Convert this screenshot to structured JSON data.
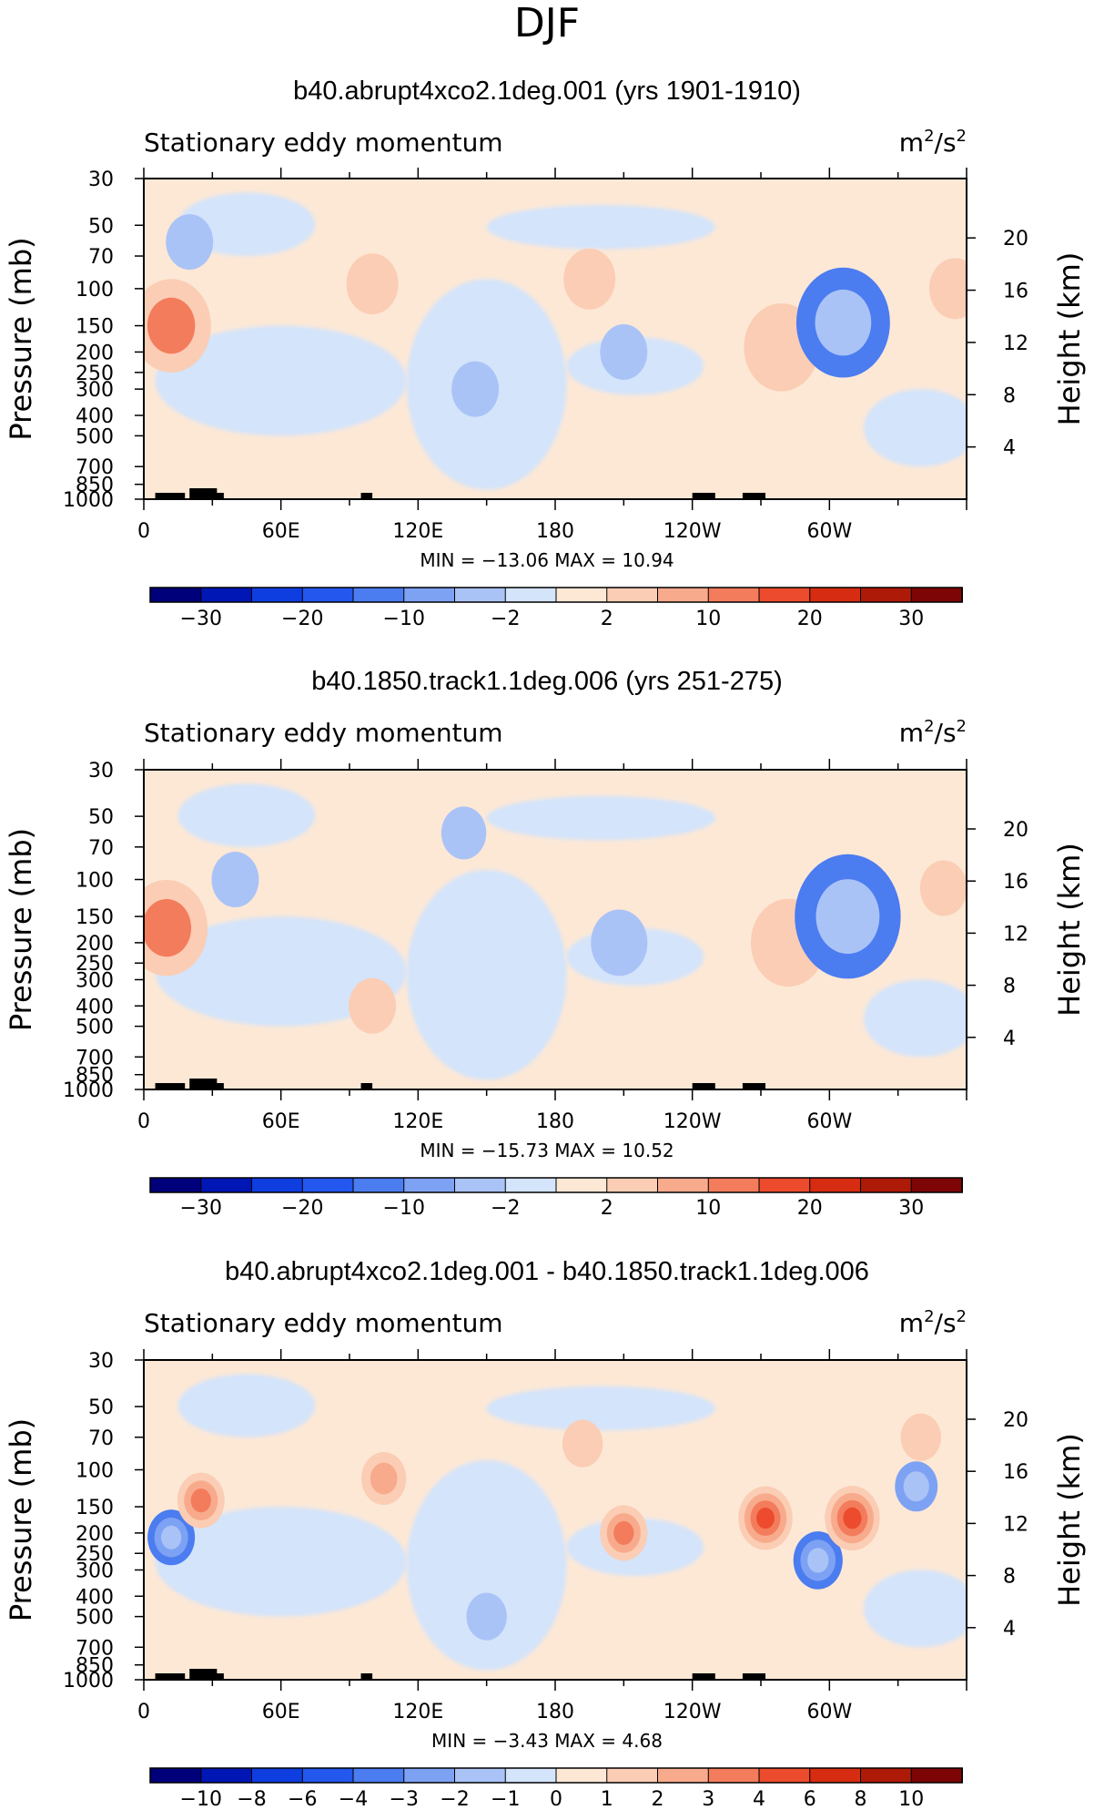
{
  "page": {
    "season": "DJF"
  },
  "chart_data": [
    {
      "type": "contour",
      "title": "b40.abrupt4xco2.1deg.001 (yrs 1901-1910)",
      "subtitle_left": "Stationary eddy momentum",
      "units_base": "m",
      "units_exp1": "2",
      "units_mid": "/s",
      "units_exp2": "2",
      "ylabel_left": "Pressure (mb)",
      "ylabel_right": "Height (km)",
      "x_ticks": [
        "0",
        "60E",
        "120E",
        "180",
        "120W",
        "60W"
      ],
      "x_range_deg": [
        0,
        360
      ],
      "pressure_ticks": [
        "30",
        "50",
        "70",
        "100",
        "150",
        "200",
        "250",
        "300",
        "400",
        "500",
        "700",
        "850",
        "1000"
      ],
      "pressure_values": [
        30,
        50,
        70,
        100,
        150,
        200,
        250,
        300,
        400,
        500,
        700,
        850,
        1000
      ],
      "height_ticks": [
        "20",
        "16",
        "12",
        "8",
        "4"
      ],
      "height_values": [
        20,
        16,
        12,
        8,
        4
      ],
      "min_label": "MIN =",
      "min_value": "-13.06",
      "max_label": "MAX =",
      "max_value": "10.94",
      "colorbar_labels": [
        "−30",
        "−20",
        "−10",
        "−2",
        "2",
        "10",
        "20",
        "30"
      ],
      "colorbar_levels": [
        -30,
        -20,
        -10,
        -2,
        2,
        10,
        20,
        30
      ],
      "features": [
        {
          "lon": 12,
          "p": 150,
          "value": 10
        },
        {
          "lon": 100,
          "p": 95,
          "value": 4
        },
        {
          "lon": 195,
          "p": 90,
          "value": 4
        },
        {
          "lon": 279,
          "p": 190,
          "value": 9
        },
        {
          "lon": 306,
          "p": 145,
          "value": -13.06
        },
        {
          "lon": 210,
          "p": 200,
          "value": -3
        },
        {
          "lon": 145,
          "p": 300,
          "value": -3
        },
        {
          "lon": 355,
          "p": 100,
          "value": 4
        },
        {
          "lon": 20,
          "p": 60,
          "value": -3
        }
      ]
    },
    {
      "type": "contour",
      "title": "b40.1850.track1.1deg.006 (yrs 251-275)",
      "subtitle_left": "Stationary eddy momentum",
      "units_base": "m",
      "units_exp1": "2",
      "units_mid": "/s",
      "units_exp2": "2",
      "ylabel_left": "Pressure (mb)",
      "ylabel_right": "Height (km)",
      "x_ticks": [
        "0",
        "60E",
        "120E",
        "180",
        "120W",
        "60W"
      ],
      "x_range_deg": [
        0,
        360
      ],
      "pressure_ticks": [
        "30",
        "50",
        "70",
        "100",
        "150",
        "200",
        "250",
        "300",
        "400",
        "500",
        "700",
        "850",
        "1000"
      ],
      "pressure_values": [
        30,
        50,
        70,
        100,
        150,
        200,
        250,
        300,
        400,
        500,
        700,
        850,
        1000
      ],
      "height_ticks": [
        "20",
        "16",
        "12",
        "8",
        "4"
      ],
      "height_values": [
        20,
        16,
        12,
        8,
        4
      ],
      "min_label": "MIN =",
      "min_value": "-15.73",
      "max_label": "MAX =",
      "max_value": "10.52",
      "colorbar_labels": [
        "−30",
        "−20",
        "−10",
        "−2",
        "2",
        "10",
        "20",
        "30"
      ],
      "colorbar_levels": [
        -30,
        -20,
        -10,
        -2,
        2,
        10,
        20,
        30
      ],
      "features": [
        {
          "lon": 10,
          "p": 170,
          "value": 10.5
        },
        {
          "lon": 208,
          "p": 200,
          "value": -5
        },
        {
          "lon": 282,
          "p": 200,
          "value": 9
        },
        {
          "lon": 308,
          "p": 150,
          "value": -15.73
        },
        {
          "lon": 350,
          "p": 110,
          "value": 3
        },
        {
          "lon": 40,
          "p": 100,
          "value": -3
        },
        {
          "lon": 140,
          "p": 60,
          "value": -2.5
        },
        {
          "lon": 100,
          "p": 400,
          "value": 3
        }
      ]
    },
    {
      "type": "contour",
      "title": "b40.abrupt4xco2.1deg.001 - b40.1850.track1.1deg.006",
      "subtitle_left": "Stationary eddy momentum",
      "units_base": "m",
      "units_exp1": "2",
      "units_mid": "/s",
      "units_exp2": "2",
      "ylabel_left": "Pressure (mb)",
      "ylabel_right": "Height (km)",
      "x_ticks": [
        "0",
        "60E",
        "120E",
        "180",
        "120W",
        "60W"
      ],
      "x_range_deg": [
        0,
        360
      ],
      "pressure_ticks": [
        "30",
        "50",
        "70",
        "100",
        "150",
        "200",
        "250",
        "300",
        "400",
        "500",
        "700",
        "850",
        "1000"
      ],
      "pressure_values": [
        30,
        50,
        70,
        100,
        150,
        200,
        250,
        300,
        400,
        500,
        700,
        850,
        1000
      ],
      "height_ticks": [
        "20",
        "16",
        "12",
        "8",
        "4"
      ],
      "height_values": [
        20,
        16,
        12,
        8,
        4
      ],
      "min_label": "MIN =",
      "min_value": "-3.43",
      "max_label": "MAX =",
      "max_value": "4.68",
      "colorbar_labels": [
        "−10",
        "−8",
        "−6",
        "−4",
        "−3",
        "−2",
        "−1",
        "0",
        "1",
        "2",
        "3",
        "4",
        "6",
        "8",
        "10"
      ],
      "colorbar_levels": [
        -10,
        -8,
        -6,
        -4,
        -3,
        -2,
        -1,
        0,
        1,
        2,
        3,
        4,
        6,
        8,
        10
      ],
      "features": [
        {
          "lon": 12,
          "p": 210,
          "value": -3
        },
        {
          "lon": 25,
          "p": 140,
          "value": 3
        },
        {
          "lon": 105,
          "p": 110,
          "value": 2.5
        },
        {
          "lon": 192,
          "p": 75,
          "value": 1.5
        },
        {
          "lon": 210,
          "p": 200,
          "value": 3
        },
        {
          "lon": 272,
          "p": 170,
          "value": 4.5
        },
        {
          "lon": 295,
          "p": 270,
          "value": -3.43
        },
        {
          "lon": 310,
          "p": 170,
          "value": 4.68
        },
        {
          "lon": 338,
          "p": 120,
          "value": -2
        },
        {
          "lon": 340,
          "p": 70,
          "value": 1.5
        },
        {
          "lon": 150,
          "p": 500,
          "value": -1.5
        }
      ]
    }
  ]
}
